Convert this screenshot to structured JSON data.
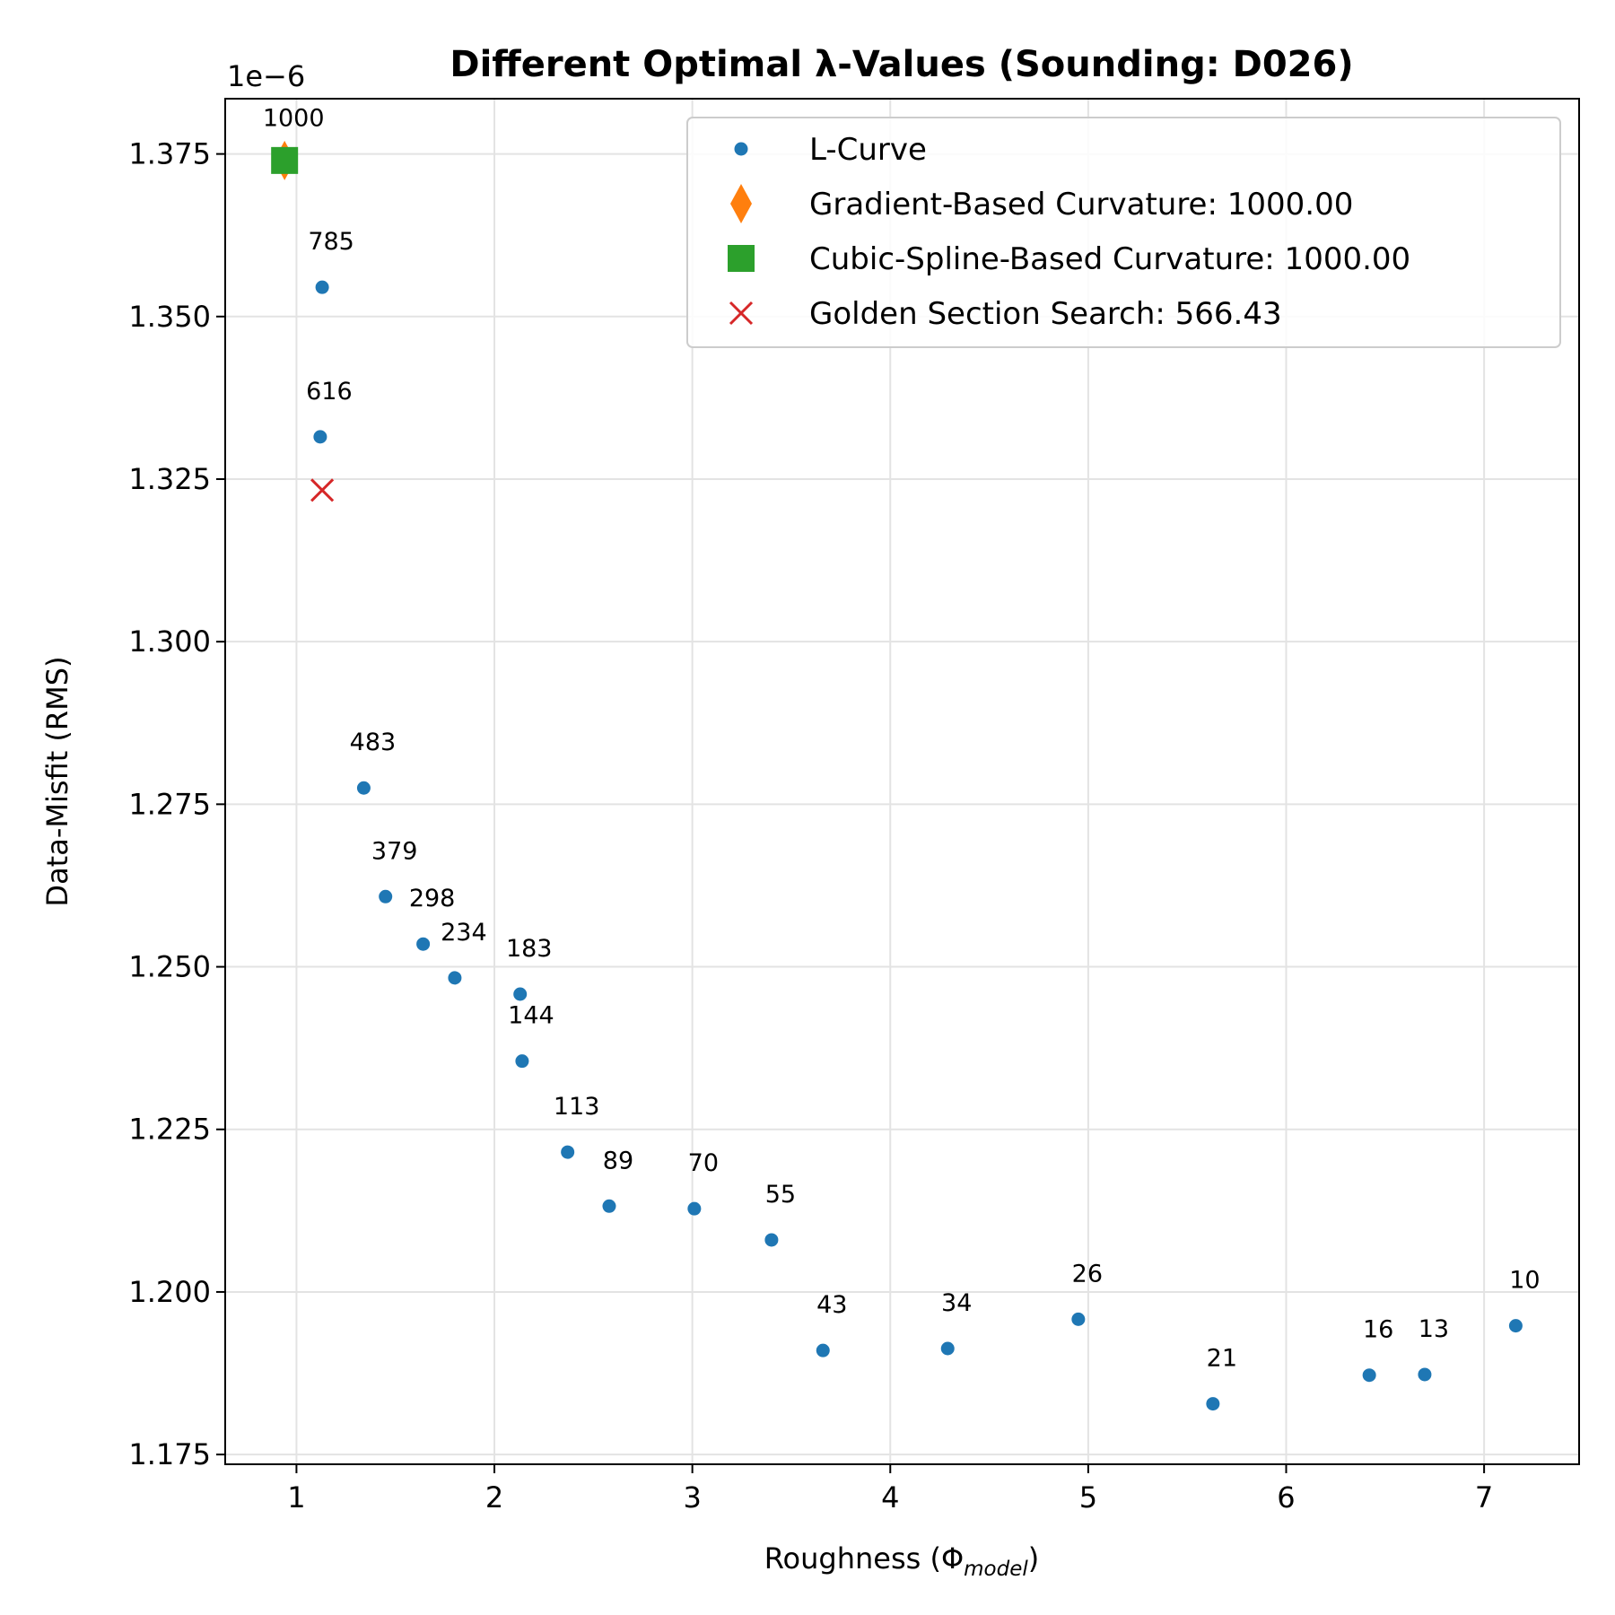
{
  "chart_data": {
    "type": "scatter",
    "title": "Different Optimal λ-Values (Sounding: D026)",
    "xlabel": "Roughness (Φmodel)",
    "xlabel_main": "Roughness (Φ",
    "xlabel_sub": "model",
    "xlabel_end": ")",
    "ylabel": "Data-Misfit (RMS)",
    "offset_text": "1e−6",
    "xlim": [
      0.64,
      7.48
    ],
    "ylim": [
      1.1735,
      1.3835
    ],
    "xticks": [
      1,
      2,
      3,
      4,
      5,
      6,
      7
    ],
    "yticks": [
      1.175,
      1.2,
      1.225,
      1.25,
      1.275,
      1.3,
      1.325,
      1.35,
      1.375
    ],
    "ytick_labels": [
      "1.175",
      "1.200",
      "1.225",
      "1.250",
      "1.275",
      "1.300",
      "1.325",
      "1.350",
      "1.375"
    ],
    "grid": true,
    "legend_position": "top-right",
    "series": [
      {
        "name": "L-Curve",
        "marker": "circle",
        "color": "#1f77b4",
        "points": [
          {
            "x": 0.94,
            "y": 1.3735,
            "label": "1000"
          },
          {
            "x": 1.13,
            "y": 1.3545,
            "label": "785"
          },
          {
            "x": 1.12,
            "y": 1.3315,
            "label": "616"
          },
          {
            "x": 1.34,
            "y": 1.2775,
            "label": "483"
          },
          {
            "x": 1.45,
            "y": 1.2608,
            "label": "379"
          },
          {
            "x": 1.64,
            "y": 1.2535,
            "label": "298"
          },
          {
            "x": 1.8,
            "y": 1.2483,
            "label": "234"
          },
          {
            "x": 2.13,
            "y": 1.2458,
            "label": "183"
          },
          {
            "x": 2.14,
            "y": 1.2355,
            "label": "144"
          },
          {
            "x": 2.37,
            "y": 1.2215,
            "label": "113"
          },
          {
            "x": 2.58,
            "y": 1.2132,
            "label": "89"
          },
          {
            "x": 3.01,
            "y": 1.2128,
            "label": "70"
          },
          {
            "x": 3.4,
            "y": 1.208,
            "label": "55"
          },
          {
            "x": 3.66,
            "y": 1.191,
            "label": "43"
          },
          {
            "x": 4.29,
            "y": 1.1913,
            "label": "34"
          },
          {
            "x": 4.95,
            "y": 1.1958,
            "label": "26"
          },
          {
            "x": 5.63,
            "y": 1.1828,
            "label": "21"
          },
          {
            "x": 6.42,
            "y": 1.1872,
            "label": "16"
          },
          {
            "x": 6.7,
            "y": 1.1873,
            "label": "13"
          },
          {
            "x": 7.16,
            "y": 1.1948,
            "label": "10"
          }
        ]
      },
      {
        "name": "Gradient-Based Curvature: 1000.00",
        "marker": "diamond",
        "color": "#ff7f0e",
        "points": [
          {
            "x": 0.94,
            "y": 1.374
          }
        ]
      },
      {
        "name": "Cubic-Spline-Based Curvature: 1000.00",
        "marker": "square",
        "color": "#2ca02c",
        "points": [
          {
            "x": 0.94,
            "y": 1.374
          }
        ]
      },
      {
        "name": "Golden Section Search: 566.43",
        "marker": "x",
        "color": "#d62728",
        "points": [
          {
            "x": 1.13,
            "y": 1.3233
          }
        ]
      }
    ]
  }
}
